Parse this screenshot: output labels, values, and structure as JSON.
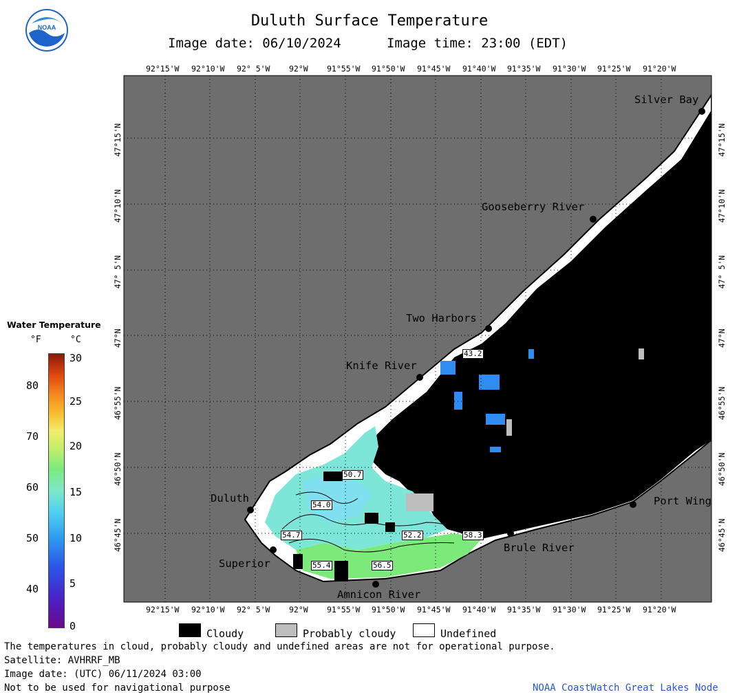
{
  "header": {
    "title": "Duluth Surface Temperature",
    "image_date_label": "Image date: 06/10/2024",
    "image_time_label": "Image time: 23:00 (EDT)"
  },
  "logo": {
    "text": "NOAA",
    "icon": "noaa-logo-icon"
  },
  "longitude_labels": [
    "92°15'W",
    "92°10'W",
    "92° 5'W",
    "92°W",
    "91°55'W",
    "91°50'W",
    "91°45'W",
    "91°40'W",
    "91°35'W",
    "91°30'W",
    "91°25'W",
    "91°20'W"
  ],
  "latitude_labels": [
    "47°15'N",
    "47°10'N",
    "47° 5'N",
    "47°N",
    "46°55'N",
    "46°50'N",
    "46°45'N"
  ],
  "places": {
    "silver_bay": "Silver Bay",
    "gooseberry_river": "Gooseberry River",
    "two_harbors": "Two Harbors",
    "knife_river": "Knife River",
    "duluth": "Duluth",
    "superior": "Superior",
    "amnicon_river": "Amnicon River",
    "brule_river": "Brule River",
    "port_wing": "Port Wing"
  },
  "temperature_values": {
    "v1": "43.2",
    "v2": "50.7",
    "v3": "54.0",
    "v4": "54.7",
    "v5": "52.2",
    "v6": "58.3",
    "v7": "55.4",
    "v8": "56.5"
  },
  "legend": {
    "title": "Water Temperature",
    "unit_f": "°F",
    "unit_c": "°C",
    "ticks_f": [
      "80",
      "70",
      "60",
      "50",
      "40"
    ],
    "ticks_c": [
      "30",
      "25",
      "20",
      "15",
      "10",
      "5",
      "0"
    ],
    "colors": {
      "cold": "#6b0a8a",
      "cool": "#2f9cf0",
      "mild": "#7bea7b",
      "warm": "#f48a20",
      "hot": "#8a1a0a"
    }
  },
  "key": {
    "cloudy": "Cloudy",
    "probably_cloudy": "Probably cloudy",
    "undefined": "Undefined"
  },
  "footer": {
    "line1": "The temperatures in cloud, probably cloudy and undefined areas are not for operational purpose.",
    "line2": "Satellite: AVHRRF_MB",
    "line3": "Image date: (UTC) 06/11/2024  03:00",
    "line4": "Not to be used for navigational purpose",
    "credit": "NOAA CoastWatch Great Lakes Node"
  },
  "colors": {
    "land": "#6e6e6e",
    "cloud": "#000000",
    "probably_cloudy": "#bdbdbd",
    "undefined": "#ffffff"
  }
}
